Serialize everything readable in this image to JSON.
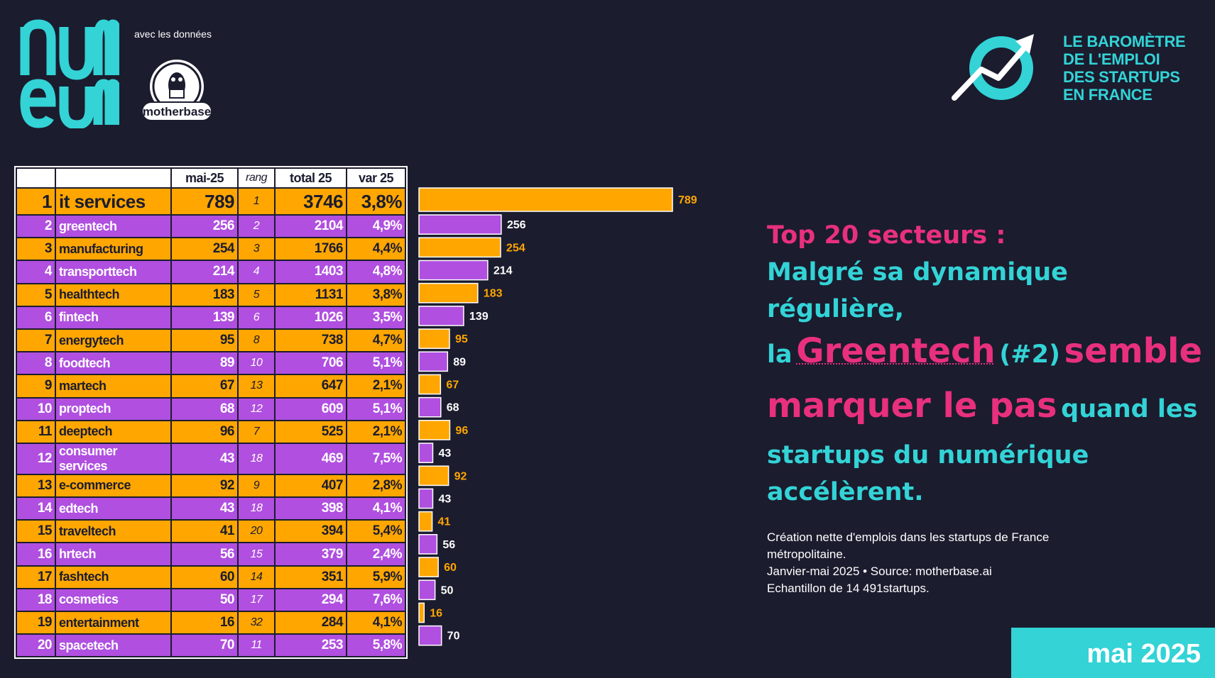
{
  "header": {
    "brand": "numeum",
    "with_data": "avec les données",
    "partner": "motherbase",
    "barometer_lines": [
      "LE BAROMÈTRE",
      "DE L'EMPLOI",
      "DES STARTUPS",
      "EN FRANCE"
    ]
  },
  "table": {
    "headers": {
      "rank": "",
      "name": "",
      "mai": "mai-25",
      "rang": "rang",
      "total": "total 25",
      "var": "var 25"
    },
    "rows": [
      {
        "rank": "1",
        "name": "it services",
        "mai": "789",
        "rang": "1",
        "total": "3746",
        "var": "3,8%"
      },
      {
        "rank": "2",
        "name": "greentech",
        "mai": "256",
        "rang": "2",
        "total": "2104",
        "var": "4,9%"
      },
      {
        "rank": "3",
        "name": "manufacturing",
        "mai": "254",
        "rang": "3",
        "total": "1766",
        "var": "4,4%"
      },
      {
        "rank": "4",
        "name": "transporttech",
        "mai": "214",
        "rang": "4",
        "total": "1403",
        "var": "4,8%"
      },
      {
        "rank": "5",
        "name": "healthtech",
        "mai": "183",
        "rang": "5",
        "total": "1131",
        "var": "3,8%"
      },
      {
        "rank": "6",
        "name": "fintech",
        "mai": "139",
        "rang": "6",
        "total": "1026",
        "var": "3,5%"
      },
      {
        "rank": "7",
        "name": "energytech",
        "mai": "95",
        "rang": "8",
        "total": "738",
        "var": "4,7%"
      },
      {
        "rank": "8",
        "name": "foodtech",
        "mai": "89",
        "rang": "10",
        "total": "706",
        "var": "5,1%"
      },
      {
        "rank": "9",
        "name": "martech",
        "mai": "67",
        "rang": "13",
        "total": "647",
        "var": "2,1%"
      },
      {
        "rank": "10",
        "name": "proptech",
        "mai": "68",
        "rang": "12",
        "total": "609",
        "var": "5,1%"
      },
      {
        "rank": "11",
        "name": "deeptech",
        "mai": "96",
        "rang": "7",
        "total": "525",
        "var": "2,1%"
      },
      {
        "rank": "12",
        "name": "consumer services",
        "mai": "43",
        "rang": "18",
        "total": "469",
        "var": "7,5%"
      },
      {
        "rank": "13",
        "name": "e-commerce",
        "mai": "92",
        "rang": "9",
        "total": "407",
        "var": "2,8%"
      },
      {
        "rank": "14",
        "name": "edtech",
        "mai": "43",
        "rang": "18",
        "total": "398",
        "var": "4,1%"
      },
      {
        "rank": "15",
        "name": "traveltech",
        "mai": "41",
        "rang": "20",
        "total": "394",
        "var": "5,4%"
      },
      {
        "rank": "16",
        "name": "hrtech",
        "mai": "56",
        "rang": "15",
        "total": "379",
        "var": "2,4%"
      },
      {
        "rank": "17",
        "name": "fashtech",
        "mai": "60",
        "rang": "14",
        "total": "351",
        "var": "5,9%"
      },
      {
        "rank": "18",
        "name": "cosmetics",
        "mai": "50",
        "rang": "17",
        "total": "294",
        "var": "7,6%"
      },
      {
        "rank": "19",
        "name": "entertainment",
        "mai": "16",
        "rang": "32",
        "total": "284",
        "var": "4,1%"
      },
      {
        "rank": "20",
        "name": "spacetech",
        "mai": "70",
        "rang": "11",
        "total": "253",
        "var": "5,8%"
      }
    ]
  },
  "chart_data": {
    "type": "bar",
    "orientation": "horizontal",
    "title": "",
    "xlabel": "",
    "ylabel": "",
    "xlim": [
      0,
      1000
    ],
    "categories": [
      "it services",
      "greentech",
      "manufacturing",
      "transporttech",
      "healthtech",
      "fintech",
      "energytech",
      "foodtech",
      "martech",
      "proptech",
      "deeptech",
      "consumer services",
      "e-commerce",
      "edtech",
      "traveltech",
      "hrtech",
      "fashtech",
      "cosmetics",
      "entertainment",
      "spacetech"
    ],
    "values": [
      789,
      256,
      254,
      214,
      183,
      139,
      95,
      89,
      67,
      68,
      96,
      43,
      92,
      43,
      41,
      56,
      60,
      50,
      16,
      70
    ],
    "labels": [
      "789",
      "256",
      "254",
      "214",
      "183",
      "139",
      "95",
      "89",
      "67",
      "68",
      "96",
      "43",
      "92",
      "43",
      "41",
      "56",
      "60",
      "50",
      "16",
      "70"
    ],
    "colors": {
      "orange": "#ffa600",
      "purple": "#b04fe0"
    }
  },
  "headline": {
    "line1": "Top 20 secteurs :",
    "line2": "Malgré sa dynamique régulière,",
    "la": "la",
    "greentech": "Greentech",
    "num": "(#2)",
    "semble": "semble",
    "marquer": "marquer le pas",
    "quand": "quand les",
    "line5": "startups du numérique",
    "line6": "accélèrent."
  },
  "source": {
    "line1": "Création nette d'emplois dans les startups de France",
    "line2": "métropolitaine.",
    "line3": "Janvier-mai 2025 • Source: motherbase.ai",
    "line4": "Echantillon de 14 491startups."
  },
  "badge": {
    "date": "mai 2025"
  },
  "colors": {
    "background": "#1b1c2e",
    "cyan": "#33d3d6",
    "pink": "#e8307e",
    "orange": "#ffa600",
    "purple": "#b04fe0"
  }
}
